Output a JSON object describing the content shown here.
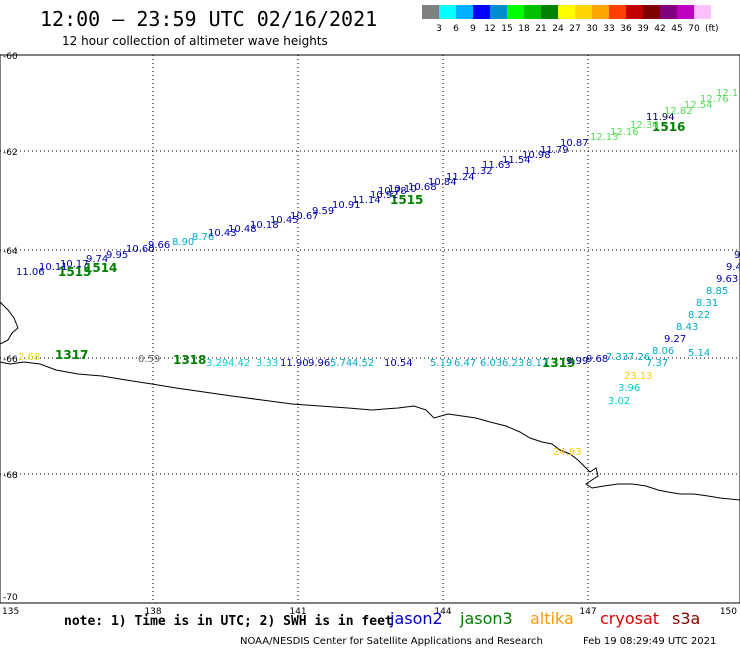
{
  "header": {
    "title": "12:00 – 23:59 UTC 02/16/2021",
    "subtitle": "12 hour collection of altimeter wave heights"
  },
  "legend": {
    "labels": [
      "3",
      "6",
      "9",
      "12",
      "15",
      "18",
      "21",
      "24",
      "27",
      "30",
      "33",
      "36",
      "39",
      "42",
      "45",
      "70"
    ],
    "unit": "(ft)",
    "colors": [
      "#808080",
      "#00ffff",
      "#00b0ff",
      "#0000ff",
      "#008cc8",
      "#00ff00",
      "#00c000",
      "#008000",
      "#ffff00",
      "#ffd700",
      "#ffa500",
      "#ff4000",
      "#c00000",
      "#800000",
      "#800080",
      "#c000c0",
      "#ffc0ff"
    ]
  },
  "axes": {
    "lat_labels": [
      "-60",
      "-62",
      "-64",
      "-66",
      "-68",
      "-70"
    ],
    "lon_labels": [
      "135",
      "138",
      "141",
      "144",
      "147",
      "150"
    ]
  },
  "footer": {
    "note": "note: 1) Time is in UTC; 2) SWH is in feet",
    "credit": "NOAA/NESDIS Center for Satellite Applications and Research",
    "timestamp": "Feb 19 08:29:49 UTC 2021"
  },
  "satellites": [
    {
      "name": "jason2",
      "color": "#0000cc"
    },
    {
      "name": "jason3",
      "color": "#008000"
    },
    {
      "name": "altika",
      "color": "#ff9900"
    },
    {
      "name": "cryosat",
      "color": "#dd0000"
    },
    {
      "name": "s3a",
      "color": "#880000"
    }
  ],
  "track_times": [
    "1515",
    "1514",
    "1515",
    "1516",
    "1317",
    "1318",
    "1319"
  ],
  "swh_labels": [
    {
      "v": "11.06",
      "c": "#0000aa"
    },
    {
      "v": "10.11",
      "c": "#0000aa"
    },
    {
      "v": "10.17",
      "c": "#0000aa"
    },
    {
      "v": "9.74",
      "c": "#0000aa"
    },
    {
      "v": "9.95",
      "c": "#0000aa"
    },
    {
      "v": "10.60",
      "c": "#0000aa"
    },
    {
      "v": "9.66",
      "c": "#0000aa"
    },
    {
      "v": "8.90",
      "c": "#00aacc"
    },
    {
      "v": "8.76",
      "c": "#00aacc"
    },
    {
      "v": "10.43",
      "c": "#0000aa"
    },
    {
      "v": "10.48",
      "c": "#0000aa"
    },
    {
      "v": "10.18",
      "c": "#0000aa"
    },
    {
      "v": "10.45",
      "c": "#0000aa"
    },
    {
      "v": "10.67",
      "c": "#0000aa"
    },
    {
      "v": "9.59",
      "c": "#0000aa"
    },
    {
      "v": "10.91",
      "c": "#0000aa"
    },
    {
      "v": "11.14",
      "c": "#0000aa"
    },
    {
      "v": "10.92",
      "c": "#0000aa"
    },
    {
      "v": "10.78",
      "c": "#0000aa"
    },
    {
      "v": "10.10",
      "c": "#0000aa"
    },
    {
      "v": "10.68",
      "c": "#0000aa"
    },
    {
      "v": "10.84",
      "c": "#0000aa"
    },
    {
      "v": "11.24",
      "c": "#0000aa"
    },
    {
      "v": "11.32",
      "c": "#0000aa"
    },
    {
      "v": "11.63",
      "c": "#0000aa"
    },
    {
      "v": "11.54",
      "c": "#0000aa"
    },
    {
      "v": "10.98",
      "c": "#0000aa"
    },
    {
      "v": "11.79",
      "c": "#0000aa"
    },
    {
      "v": "10.87",
      "c": "#0000aa"
    },
    {
      "v": "12.13",
      "c": "#55dd55"
    },
    {
      "v": "12.16",
      "c": "#55dd55"
    },
    {
      "v": "12.34",
      "c": "#55dd55"
    },
    {
      "v": "11.94",
      "c": "#000066"
    },
    {
      "v": "12.82",
      "c": "#55dd55"
    },
    {
      "v": "12.54",
      "c": "#55dd55"
    },
    {
      "v": "12.76",
      "c": "#55dd55"
    },
    {
      "v": "12.1",
      "c": "#55dd55"
    },
    {
      "v": "2.68",
      "c": "#dddd00"
    },
    {
      "v": "0.59",
      "c": "#666666"
    },
    {
      "v": "3.29",
      "c": "#00cccc"
    },
    {
      "v": "4.42",
      "c": "#00cccc"
    },
    {
      "v": "3.33",
      "c": "#00cccc"
    },
    {
      "v": "11.90",
      "c": "#0000aa"
    },
    {
      "v": "9.96",
      "c": "#0000aa"
    },
    {
      "v": "5.74",
      "c": "#00aacc"
    },
    {
      "v": "4.52",
      "c": "#00aacc"
    },
    {
      "v": "10.54",
      "c": "#0000aa"
    },
    {
      "v": "5.19",
      "c": "#00aacc"
    },
    {
      "v": "6.47",
      "c": "#00aacc"
    },
    {
      "v": "6.03",
      "c": "#00aacc"
    },
    {
      "v": "6.23",
      "c": "#00aacc"
    },
    {
      "v": "8.17",
      "c": "#00aacc"
    },
    {
      "v": "9.99",
      "c": "#0000aa"
    },
    {
      "v": "9.68",
      "c": "#0000aa"
    },
    {
      "v": "7.33",
      "c": "#00aacc"
    },
    {
      "v": "7.26",
      "c": "#00aacc"
    },
    {
      "v": "7.37",
      "c": "#00aacc"
    },
    {
      "v": "5.14",
      "c": "#00aacc"
    },
    {
      "v": "8.06",
      "c": "#00aacc"
    },
    {
      "v": "9.27",
      "c": "#0000aa"
    },
    {
      "v": "8.43",
      "c": "#00aacc"
    },
    {
      "v": "8.22",
      "c": "#00aacc"
    },
    {
      "v": "8.31",
      "c": "#00aacc"
    },
    {
      "v": "8.85",
      "c": "#00aacc"
    },
    {
      "v": "9.63",
      "c": "#0000aa"
    },
    {
      "v": "9.4",
      "c": "#0000aa"
    },
    {
      "v": "9",
      "c": "#0000aa"
    },
    {
      "v": "23.13",
      "c": "#ffcc00"
    },
    {
      "v": "3.96",
      "c": "#00cccc"
    },
    {
      "v": "3.02",
      "c": "#00cccc"
    },
    {
      "v": "24.93",
      "c": "#ffcc00"
    }
  ]
}
